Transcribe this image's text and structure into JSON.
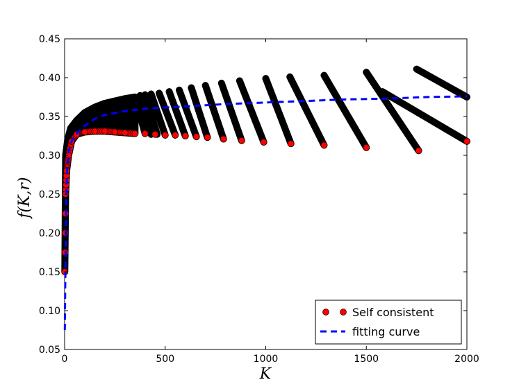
{
  "chart_data": {
    "type": "scatter",
    "xlabel": "K",
    "ylabel": "f(K,r)",
    "xlim": [
      0,
      2000
    ],
    "ylim": [
      0.05,
      0.45
    ],
    "x_ticks": [
      "0",
      "500",
      "1000",
      "1500",
      "2000"
    ],
    "y_ticks": [
      "0.05",
      "0.10",
      "0.15",
      "0.20",
      "0.25",
      "0.30",
      "0.35",
      "0.40",
      "0.45"
    ],
    "grid": false,
    "legend_position": "lower-right",
    "series": [
      {
        "name": "Self consistent",
        "marker": "circle",
        "color": "#ff0000",
        "edge_color": "#000000",
        "lower_bound_points": [
          [
            1,
            0.15
          ],
          [
            3,
            0.2
          ],
          [
            5,
            0.25
          ],
          [
            10,
            0.28
          ],
          [
            20,
            0.3
          ],
          [
            35,
            0.318
          ],
          [
            60,
            0.327
          ],
          [
            100,
            0.33
          ],
          [
            150,
            0.331
          ],
          [
            200,
            0.331
          ],
          [
            250,
            0.33
          ],
          [
            300,
            0.329
          ],
          [
            350,
            0.328
          ],
          [
            400,
            0.328
          ],
          [
            450,
            0.327
          ],
          [
            500,
            0.326
          ],
          [
            550,
            0.326
          ],
          [
            600,
            0.325
          ],
          [
            655,
            0.324
          ],
          [
            710,
            0.323
          ],
          [
            790,
            0.321
          ],
          [
            880,
            0.319
          ],
          [
            990,
            0.317
          ],
          [
            1125,
            0.315
          ],
          [
            1290,
            0.313
          ],
          [
            1500,
            0.31
          ],
          [
            1760,
            0.306
          ],
          [
            2000,
            0.318
          ]
        ],
        "branch_lines": [
          {
            "x0": 350,
            "y0": 0.375,
            "x1": 400,
            "y1": 0.328
          },
          {
            "x0": 375,
            "y0": 0.377,
            "x1": 430,
            "y1": 0.327
          },
          {
            "x0": 400,
            "y0": 0.378,
            "x1": 460,
            "y1": 0.327
          },
          {
            "x0": 430,
            "y0": 0.379,
            "x1": 500,
            "y1": 0.326
          },
          {
            "x0": 470,
            "y0": 0.38,
            "x1": 550,
            "y1": 0.326
          },
          {
            "x0": 520,
            "y0": 0.382,
            "x1": 600,
            "y1": 0.325
          },
          {
            "x0": 570,
            "y0": 0.384,
            "x1": 655,
            "y1": 0.324
          },
          {
            "x0": 630,
            "y0": 0.387,
            "x1": 710,
            "y1": 0.323
          },
          {
            "x0": 700,
            "y0": 0.39,
            "x1": 790,
            "y1": 0.321
          },
          {
            "x0": 780,
            "y0": 0.393,
            "x1": 880,
            "y1": 0.319
          },
          {
            "x0": 870,
            "y0": 0.396,
            "x1": 990,
            "y1": 0.317
          },
          {
            "x0": 1000,
            "y0": 0.399,
            "x1": 1125,
            "y1": 0.315
          },
          {
            "x0": 1120,
            "y0": 0.401,
            "x1": 1290,
            "y1": 0.313
          },
          {
            "x0": 1290,
            "y0": 0.403,
            "x1": 1500,
            "y1": 0.31
          },
          {
            "x0": 1500,
            "y0": 0.407,
            "x1": 1760,
            "y1": 0.306
          },
          {
            "x0": 1750,
            "y0": 0.411,
            "x1": 2000,
            "y1": 0.375
          },
          {
            "x0": 1580,
            "y0": 0.382,
            "x1": 2000,
            "y1": 0.318
          }
        ],
        "upper_envelope_points": [
          [
            5,
            0.3
          ],
          [
            15,
            0.32
          ],
          [
            30,
            0.335
          ],
          [
            60,
            0.345
          ],
          [
            100,
            0.355
          ],
          [
            150,
            0.362
          ],
          [
            200,
            0.367
          ],
          [
            250,
            0.37
          ],
          [
            300,
            0.373
          ],
          [
            350,
            0.375
          ]
        ]
      },
      {
        "name": "fitting curve",
        "line_style": "dashed",
        "color": "#0000ff",
        "points": [
          [
            1,
            0.075
          ],
          [
            2,
            0.1
          ],
          [
            3,
            0.13
          ],
          [
            5,
            0.18
          ],
          [
            8,
            0.24
          ],
          [
            12,
            0.28
          ],
          [
            20,
            0.305
          ],
          [
            35,
            0.318
          ],
          [
            60,
            0.328
          ],
          [
            100,
            0.338
          ],
          [
            150,
            0.347
          ],
          [
            200,
            0.352
          ],
          [
            300,
            0.357
          ],
          [
            400,
            0.36
          ],
          [
            600,
            0.363
          ],
          [
            800,
            0.366
          ],
          [
            1000,
            0.368
          ],
          [
            1200,
            0.37
          ],
          [
            1400,
            0.372
          ],
          [
            1600,
            0.373
          ],
          [
            1800,
            0.375
          ],
          [
            2000,
            0.376
          ]
        ]
      }
    ]
  }
}
